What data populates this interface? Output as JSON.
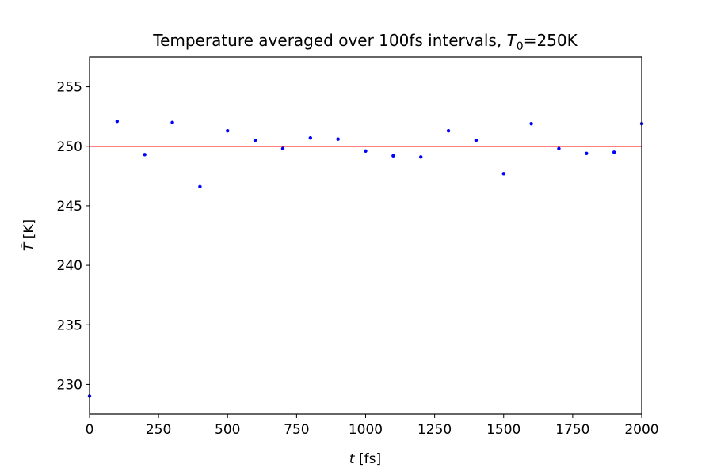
{
  "chart_data": {
    "type": "scatter",
    "title": {
      "prefix": "Temperature averaged over 100fs intervals, ",
      "var": "T",
      "sub": "0",
      "suffix": "=250K"
    },
    "xlabel": {
      "var": "t",
      "unit": " [fs]"
    },
    "ylabel": {
      "var": "T̄",
      "unit": " [K]"
    },
    "xlim": [
      0,
      2000
    ],
    "ylim": [
      227.5,
      257.5
    ],
    "xticks": [
      0,
      250,
      500,
      750,
      1000,
      1250,
      1500,
      1750,
      2000
    ],
    "yticks": [
      230,
      235,
      240,
      245,
      250,
      255
    ],
    "grid": false,
    "series": [
      {
        "color": "#0000ff",
        "x": [
          0,
          100,
          200,
          300,
          400,
          500,
          600,
          700,
          800,
          900,
          1000,
          1100,
          1200,
          1300,
          1400,
          1500,
          1600,
          1700,
          1800,
          1900,
          2000
        ],
        "y": [
          229.0,
          252.1,
          249.3,
          252.0,
          246.6,
          251.3,
          250.5,
          249.8,
          250.7,
          250.6,
          249.6,
          249.2,
          249.1,
          251.3,
          250.5,
          247.7,
          251.9,
          249.8,
          249.4,
          249.5,
          251.9
        ]
      }
    ],
    "reference_line": {
      "y": 250,
      "color": "#ff0000"
    }
  }
}
